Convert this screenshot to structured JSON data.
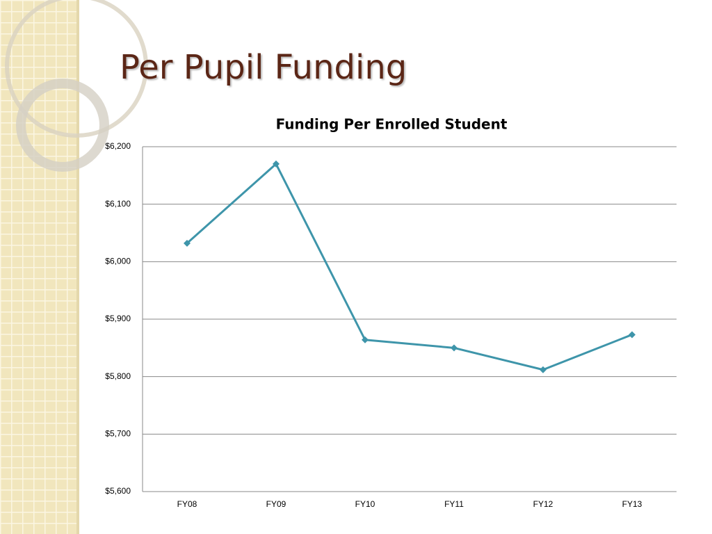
{
  "slide": {
    "title": "Per Pupil Funding"
  },
  "chart_data": {
    "type": "line",
    "title": "Funding Per Enrolled Student",
    "categories": [
      "FY08",
      "FY09",
      "FY10",
      "FY11",
      "FY12",
      "FY13"
    ],
    "series": [
      {
        "name": "Funding Per Enrolled Student",
        "color": "#3e95aa",
        "values": [
          6032,
          6170,
          5864,
          5850,
          5812,
          5873
        ]
      }
    ],
    "ylim": [
      5600,
      6200
    ],
    "yticks": [
      {
        "value": 5600,
        "label": "$5,600"
      },
      {
        "value": 5700,
        "label": "$5,700"
      },
      {
        "value": 5800,
        "label": "$5,800"
      },
      {
        "value": 5900,
        "label": "$5,900"
      },
      {
        "value": 6000,
        "label": "$6,000"
      },
      {
        "value": 6100,
        "label": "$6,100"
      },
      {
        "value": 6200,
        "label": "$6,200"
      }
    ],
    "grid": true
  }
}
